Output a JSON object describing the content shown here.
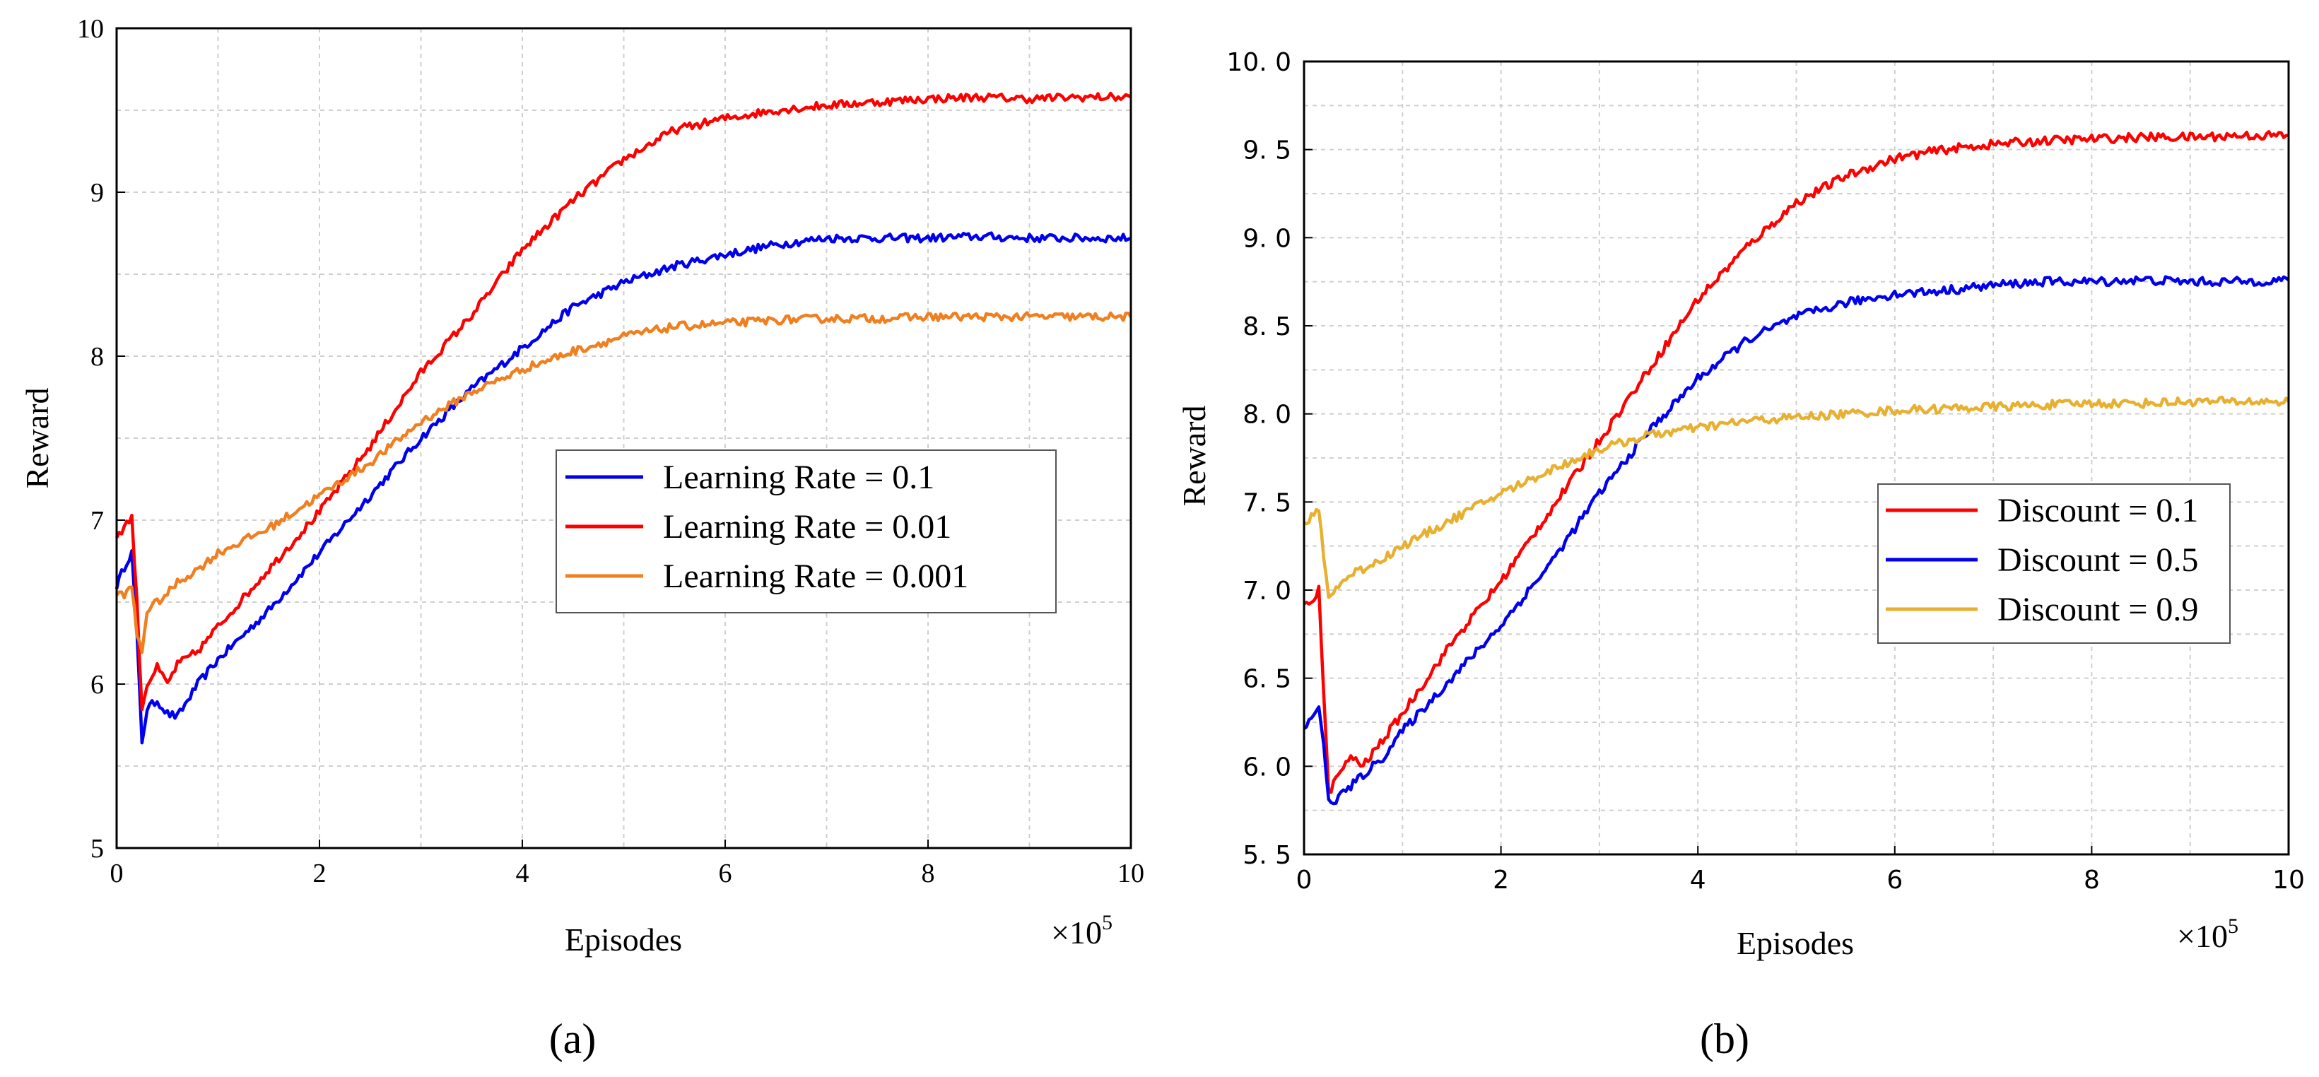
{
  "chart_data": [
    {
      "type": "line",
      "panel_label": "(a)",
      "xlabel": "Episodes",
      "ylabel": "Reward",
      "x_multiplier": "×10",
      "x_multiplier_exp": "5",
      "xlim": [
        0,
        10
      ],
      "ylim": [
        5,
        10
      ],
      "xticks": [
        0,
        2,
        4,
        6,
        8,
        10
      ],
      "yticks": [
        5,
        6,
        7,
        8,
        9,
        10
      ],
      "ytick_labels": [
        "5",
        "6",
        "7",
        "8",
        "9",
        "10"
      ],
      "grid": true,
      "legend_position": "center-right",
      "x": [
        0,
        0.1,
        0.15,
        0.2,
        0.25,
        0.3,
        0.4,
        0.5,
        0.6,
        0.8,
        1,
        1.5,
        2,
        2.5,
        3,
        3.5,
        4,
        4.5,
        5,
        5.5,
        6,
        6.5,
        7,
        7.5,
        8,
        8.5,
        9,
        9.5,
        10
      ],
      "series": [
        {
          "name": "Learning Rate = 0.1",
          "color": "#0000ee",
          "values": [
            6.6,
            6.75,
            6.8,
            6.3,
            5.65,
            5.85,
            5.9,
            5.82,
            5.8,
            6.0,
            6.15,
            6.45,
            6.8,
            7.15,
            7.5,
            7.8,
            8.05,
            8.3,
            8.45,
            8.55,
            8.62,
            8.68,
            8.72,
            8.72,
            8.72,
            8.73,
            8.72,
            8.72,
            8.72
          ]
        },
        {
          "name": "Learning Rate = 0.01",
          "color": "#ff0000",
          "values": [
            6.9,
            6.98,
            7.02,
            6.5,
            5.85,
            6.0,
            6.1,
            6.0,
            6.12,
            6.2,
            6.35,
            6.7,
            7.05,
            7.45,
            7.9,
            8.25,
            8.65,
            8.95,
            9.2,
            9.38,
            9.45,
            9.5,
            9.53,
            9.55,
            9.57,
            9.58,
            9.57,
            9.58,
            9.58
          ]
        },
        {
          "name": "Learning Rate = 0.001",
          "color": "#f07f20",
          "values": [
            6.55,
            6.55,
            6.6,
            6.3,
            6.2,
            6.45,
            6.5,
            6.55,
            6.62,
            6.7,
            6.8,
            6.95,
            7.15,
            7.35,
            7.6,
            7.78,
            7.92,
            8.03,
            8.12,
            8.18,
            8.2,
            8.22,
            8.23,
            8.23,
            8.24,
            8.24,
            8.24,
            8.24,
            8.24
          ]
        }
      ]
    },
    {
      "type": "line",
      "panel_label": "(b)",
      "xlabel": "Episodes",
      "ylabel": "Reward",
      "x_multiplier": "×10",
      "x_multiplier_exp": "5",
      "xlim": [
        0,
        10
      ],
      "ylim": [
        5.5,
        10
      ],
      "xticks": [
        0,
        2,
        4,
        6,
        8,
        10
      ],
      "yticks": [
        5.5,
        6.0,
        6.5,
        7.0,
        7.5,
        8.0,
        8.5,
        9.0,
        9.5,
        10.0
      ],
      "ytick_labels": [
        "5. 5",
        "6. 0",
        "6. 5",
        "7. 0",
        "7. 5",
        "8. 0",
        "8. 5",
        "9. 0",
        "9. 5",
        "10. 0"
      ],
      "grid": true,
      "legend_position": "center-right",
      "x": [
        0,
        0.1,
        0.15,
        0.2,
        0.25,
        0.3,
        0.4,
        0.5,
        0.6,
        0.8,
        1,
        1.5,
        2,
        2.5,
        3,
        3.5,
        4,
        4.5,
        5,
        5.5,
        6,
        6.5,
        7,
        7.5,
        8,
        8.5,
        9,
        9.5,
        10
      ],
      "series": [
        {
          "name": "Discount = 0.1",
          "color": "#ff0000",
          "values": [
            6.9,
            6.95,
            7.02,
            6.4,
            5.85,
            5.9,
            6.0,
            6.05,
            6.0,
            6.15,
            6.3,
            6.7,
            7.05,
            7.45,
            7.85,
            8.25,
            8.65,
            8.95,
            9.2,
            9.35,
            9.45,
            9.5,
            9.53,
            9.55,
            9.56,
            9.57,
            9.57,
            9.58,
            9.58
          ]
        },
        {
          "name": "Discount = 0.5",
          "color": "#0000ee",
          "values": [
            6.2,
            6.3,
            6.35,
            6.1,
            5.8,
            5.8,
            5.85,
            5.9,
            5.95,
            6.05,
            6.2,
            6.5,
            6.8,
            7.15,
            7.55,
            7.9,
            8.2,
            8.42,
            8.55,
            8.63,
            8.68,
            8.7,
            8.73,
            8.75,
            8.75,
            8.76,
            8.75,
            8.75,
            8.76
          ]
        },
        {
          "name": "Discount = 0.9",
          "color": "#e8b030",
          "values": [
            7.38,
            7.42,
            7.45,
            7.2,
            6.95,
            7.0,
            7.05,
            7.1,
            7.12,
            7.18,
            7.25,
            7.4,
            7.55,
            7.68,
            7.8,
            7.88,
            7.92,
            7.96,
            7.98,
            8.0,
            8.02,
            8.03,
            8.04,
            8.05,
            8.06,
            8.06,
            8.07,
            8.07,
            8.07
          ]
        }
      ]
    }
  ]
}
